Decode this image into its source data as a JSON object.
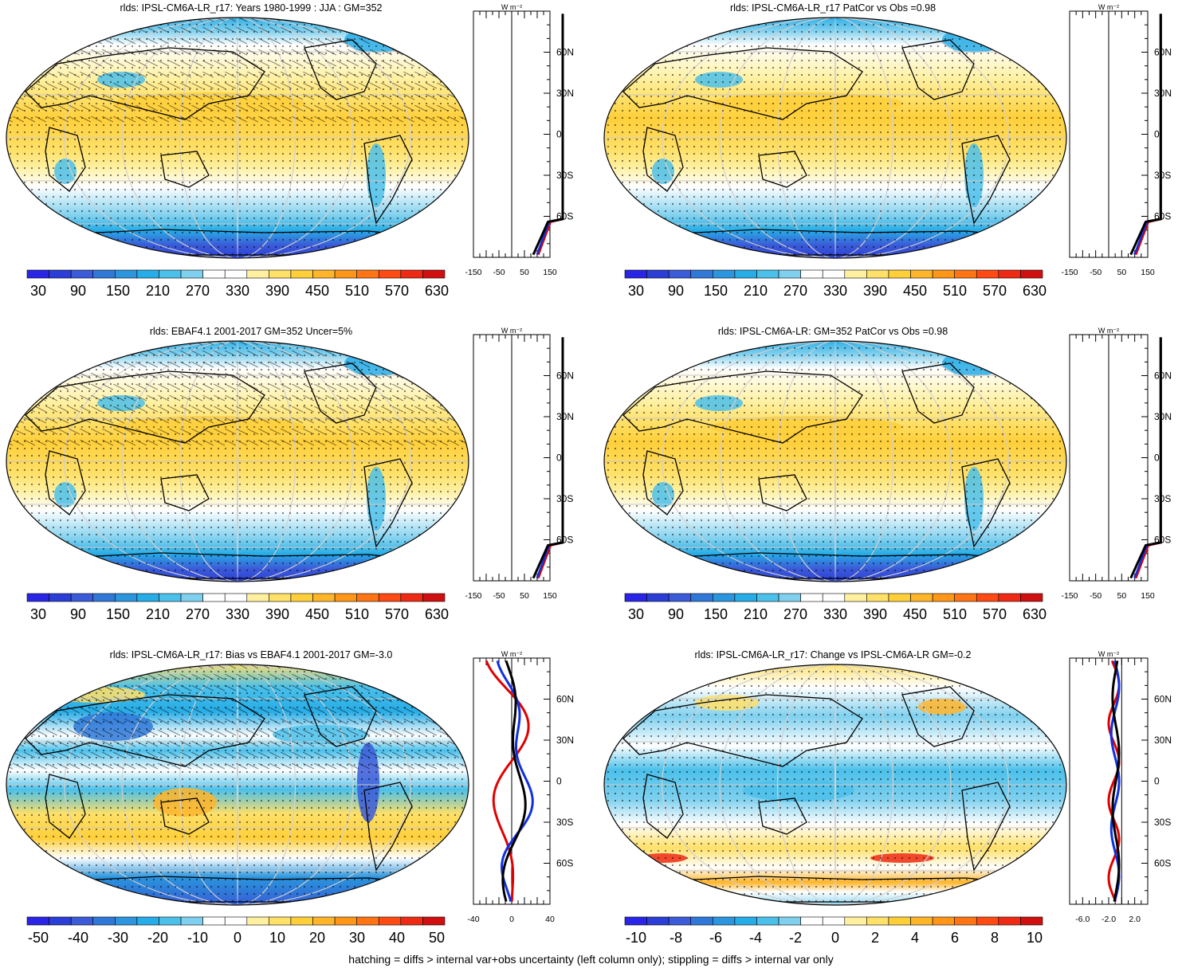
{
  "footer": "hatching = diffs > internal var+obs uncertainty (left column only); stippling = diffs > internal var only",
  "profile_unit": "W m⁻²",
  "colors": {
    "blue_scale": [
      "#2a25e6",
      "#2b3ed6",
      "#3b5bd8",
      "#2f78d8",
      "#2b95dd",
      "#26ace6",
      "#4bc0ea",
      "#7fd0ee",
      "#ffffff",
      "#ffffff",
      "#fff0a0",
      "#ffe068",
      "#ffcf3a",
      "#ffb52a",
      "#ff9617",
      "#ff7414",
      "#ff4a14",
      "#ee2a15",
      "#d01010"
    ],
    "diff_scale": [
      "#2a25e6",
      "#2b3ed6",
      "#3b5bd8",
      "#2f78d8",
      "#2b95dd",
      "#26ace6",
      "#4bc0ea",
      "#7fd0ee",
      "#ffffff",
      "#ffffff",
      "#fff0a0",
      "#ffe068",
      "#ffcf3a",
      "#ffb52a",
      "#ff9617",
      "#ff7414",
      "#ff4a14",
      "#ee2a15",
      "#d01010"
    ],
    "land": "#000000"
  },
  "chart_data": [
    {
      "type": "heatmap",
      "title": "rlds: IPSL-CM6A-LR_r17: Years 1980-1999 : JJA : GM=352",
      "colorbar_labels": [
        "30",
        "90",
        "150",
        "210",
        "270",
        "330",
        "390",
        "450",
        "510",
        "570",
        "630"
      ],
      "profile_yticks": [
        "60N",
        "30N",
        "0",
        "30S",
        "60S"
      ],
      "profile_xticks": [
        "-150",
        "-50",
        "50",
        "150"
      ],
      "profile_xlim": [
        -150,
        150
      ],
      "hatching": true,
      "stippling": true
    },
    {
      "type": "heatmap",
      "title": "rlds: IPSL-CM6A-LR_r17 PatCor vs Obs =0.98",
      "colorbar_labels": [
        "30",
        "90",
        "150",
        "210",
        "270",
        "330",
        "390",
        "450",
        "510",
        "570",
        "630"
      ],
      "profile_yticks": [
        "60N",
        "30N",
        "0",
        "30S",
        "60S"
      ],
      "profile_xticks": [
        "-150",
        "-50",
        "50",
        "150"
      ],
      "profile_xlim": [
        -150,
        150
      ],
      "hatching": false,
      "stippling": true
    },
    {
      "type": "heatmap",
      "title": "rlds: EBAF4.1 2001-2017 GM=352 Uncer=5%",
      "colorbar_labels": [
        "30",
        "90",
        "150",
        "210",
        "270",
        "330",
        "390",
        "450",
        "510",
        "570",
        "630"
      ],
      "profile_yticks": [
        "60N",
        "30N",
        "0",
        "30S",
        "60S"
      ],
      "profile_xticks": [
        "-150",
        "-50",
        "50",
        "150"
      ],
      "profile_xlim": [
        -150,
        150
      ],
      "hatching": true,
      "stippling": true
    },
    {
      "type": "heatmap",
      "title": "rlds: IPSL-CM6A-LR: GM=352 PatCor vs Obs =0.98",
      "colorbar_labels": [
        "30",
        "90",
        "150",
        "210",
        "270",
        "330",
        "390",
        "450",
        "510",
        "570",
        "630"
      ],
      "profile_yticks": [
        "60N",
        "30N",
        "0",
        "30S",
        "60S"
      ],
      "profile_xticks": [
        "-150",
        "-50",
        "50",
        "150"
      ],
      "profile_xlim": [
        -150,
        150
      ],
      "hatching": false,
      "stippling": true
    },
    {
      "type": "heatmap",
      "title": "rlds: IPSL-CM6A-LR_r17: Bias vs EBAF4.1 2001-2017 GM=-3.0",
      "colorbar_labels": [
        "-50",
        "-40",
        "-30",
        "-20",
        "-10",
        "0",
        "10",
        "20",
        "30",
        "40",
        "50"
      ],
      "profile_yticks": [
        "60N",
        "30N",
        "0",
        "30S",
        "60S"
      ],
      "profile_xticks": [
        "-40",
        "0",
        "40"
      ],
      "profile_xlim": [
        -40,
        40
      ],
      "hatching": true,
      "stippling": true
    },
    {
      "type": "heatmap",
      "title": "rlds: IPSL-CM6A-LR_r17: Change vs IPSL-CM6A-LR GM=-0.2",
      "colorbar_labels": [
        "-10",
        "-8",
        "-6",
        "-4",
        "-2",
        "0",
        "2",
        "4",
        "6",
        "8",
        "10"
      ],
      "profile_yticks": [
        "60N",
        "30N",
        "0",
        "30S",
        "60S"
      ],
      "profile_xticks": [
        "-6.0",
        "-2.0",
        "2.0"
      ],
      "profile_xlim": [
        -8,
        4
      ],
      "hatching": false,
      "stippling": true
    }
  ]
}
